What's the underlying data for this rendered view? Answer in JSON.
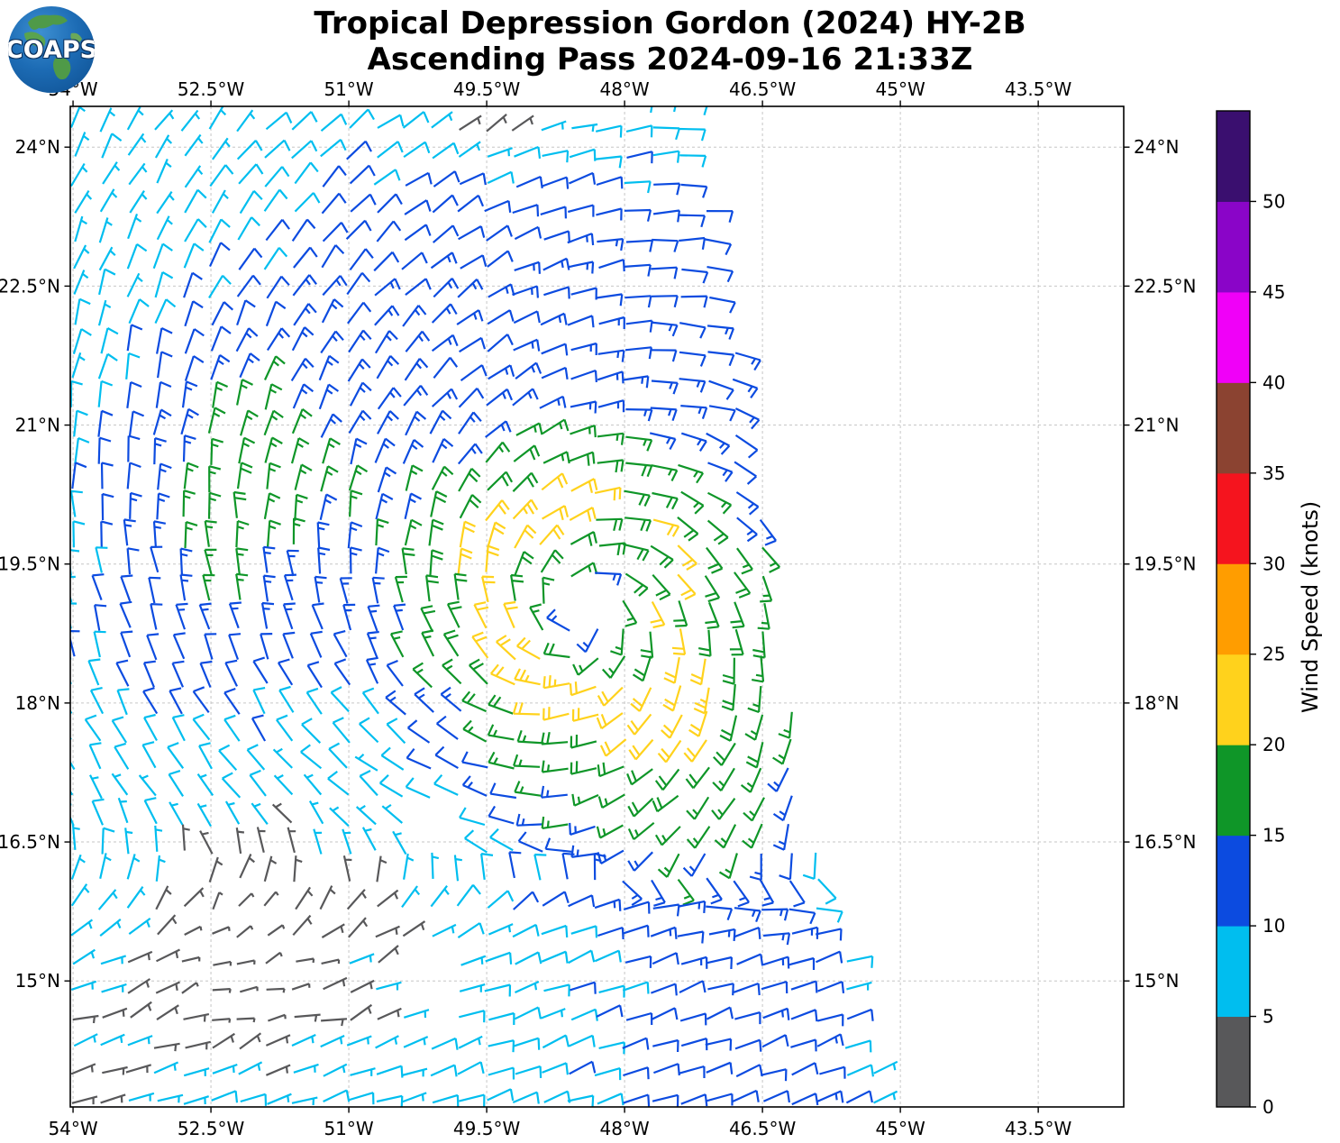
{
  "header": {
    "logo_text": "COAPS",
    "title_line1": "Tropical Depression Gordon (2024) HY-2B",
    "title_line2": "Ascending Pass 2024-09-16 21:33Z"
  },
  "chart_data": {
    "type": "wind_barb_map",
    "title": "Tropical Depression Gordon (2024) HY-2B",
    "subtitle": "Ascending Pass 2024-09-16 21:33Z",
    "x_axis": {
      "tick_labels": [
        "54°W",
        "52.5°W",
        "51°W",
        "49.5°W",
        "48°W",
        "46.5°W",
        "45°W",
        "43.5°W"
      ],
      "tick_values_deg_w": [
        54,
        52.5,
        51,
        49.5,
        48,
        46.5,
        45,
        43.5
      ],
      "range_deg_w": [
        54.03,
        42.57
      ],
      "grid": true
    },
    "y_axis": {
      "tick_labels": [
        "24°N",
        "22.5°N",
        "21°N",
        "19.5°N",
        "18°N",
        "16.5°N",
        "15°N"
      ],
      "tick_values_deg_n": [
        24,
        22.5,
        21,
        19.5,
        18,
        16.5,
        15
      ],
      "range_deg_n": [
        13.64,
        24.44
      ],
      "grid": true
    },
    "colorbar": {
      "label": "Wind Speed (knots)",
      "tick_values": [
        0,
        5,
        10,
        15,
        20,
        25,
        30,
        35,
        40,
        45,
        50
      ],
      "band_width_knots": 5,
      "band_colors_bottom_to_top": [
        "#58585A",
        "#00BEEF",
        "#0C4BE0",
        "#0F9628",
        "#FFD21C",
        "#FF9D00",
        "#F5141E",
        "#8B4331",
        "#F000F8",
        "#8A05C8",
        "#3A0F6F"
      ]
    },
    "wind_field_model": {
      "storm_center_lon_w": 48.45,
      "storm_center_lat_n": 18.95,
      "rotation": "cyclonic_counterclockwise",
      "inflow_deg": 14,
      "env_wind_from_deg_cw_from_east": 20,
      "env_blend": {
        "lat_zero": 17.2,
        "lat_span": 2.2,
        "r_min": 0.8,
        "r_span": 1.2
      },
      "grid_step_deg": 0.3,
      "background_knots": 12,
      "ring_peak_knots": 7.5,
      "ring_radius_deg": 0.95,
      "ring_sigma_in": 0.55,
      "ring_sigma_out": 0.85,
      "bumps": [
        {
          "kind": "ring",
          "amp": 3.2,
          "r0": 1.55,
          "sr": 0.75,
          "az": 120,
          "azw": 0.45
        },
        {
          "kind": "arm",
          "amp": 4.6,
          "r0": 3.9,
          "sr": 1.5,
          "az": 162,
          "saz": 30
        },
        {
          "kind": "sector",
          "amp": 4.5,
          "r0": 2.3,
          "sr": 1.1,
          "az": -52,
          "pow": 1.5
        },
        {
          "kind": "spot",
          "lon": 48.75,
          "lat": 18.25,
          "s": 0.38,
          "amp": 4.5
        },
        {
          "kind": "spot",
          "lon": 47.15,
          "lat": 18.0,
          "s": 0.35,
          "amp": 4.0
        },
        {
          "kind": "spot",
          "lon": 46.62,
          "lat": 18.85,
          "s": 0.22,
          "amp": 3.5
        },
        {
          "kind": "sector",
          "amp": -7,
          "r0": 4.2,
          "sr": 2.2,
          "az": 232,
          "pow": 4
        },
        {
          "kind": "far",
          "amp": -6,
          "r1": 4.2,
          "span": 2.5,
          "az": 155
        },
        {
          "kind": "latlon",
          "amp": -4,
          "lat0": 24.6,
          "slat": 0.8,
          "lon0": 48.9,
          "slon": 1.6
        },
        {
          "kind": "spot",
          "lon": 49.6,
          "lat": 24.55,
          "s": 0.6,
          "amp": -7
        },
        {
          "kind": "spot",
          "lon": 52.3,
          "lat": 15.0,
          "s": 1.0,
          "amp": -7
        },
        {
          "kind": "spot",
          "lon": 53.9,
          "lat": 13.75,
          "s": 0.8,
          "amp": -6
        },
        {
          "kind": "edge",
          "amp": -4.5,
          "s": 0.3,
          "lat_max": 17.3
        }
      ],
      "swath_right_edge_lon_w_by_lat": [
        [
          24.45,
          47.32
        ],
        [
          23,
          47.0
        ],
        [
          21.5,
          46.72
        ],
        [
          20,
          46.5
        ],
        [
          18.5,
          46.3
        ],
        [
          17,
          46.02
        ],
        [
          16,
          45.78
        ],
        [
          15,
          45.45
        ],
        [
          13.6,
          45.22
        ]
      ],
      "data_gaps_lon_lat_r": [
        [
          48.45,
          18.95,
          0.21
        ],
        [
          50.35,
          15.15,
          0.3
        ],
        [
          49.95,
          16.55,
          0.22
        ],
        [
          50.1,
          14.85,
          0.28
        ],
        [
          51.3,
          16.05,
          0.18
        ],
        [
          52.9,
          16.15,
          0.18
        ]
      ]
    }
  }
}
